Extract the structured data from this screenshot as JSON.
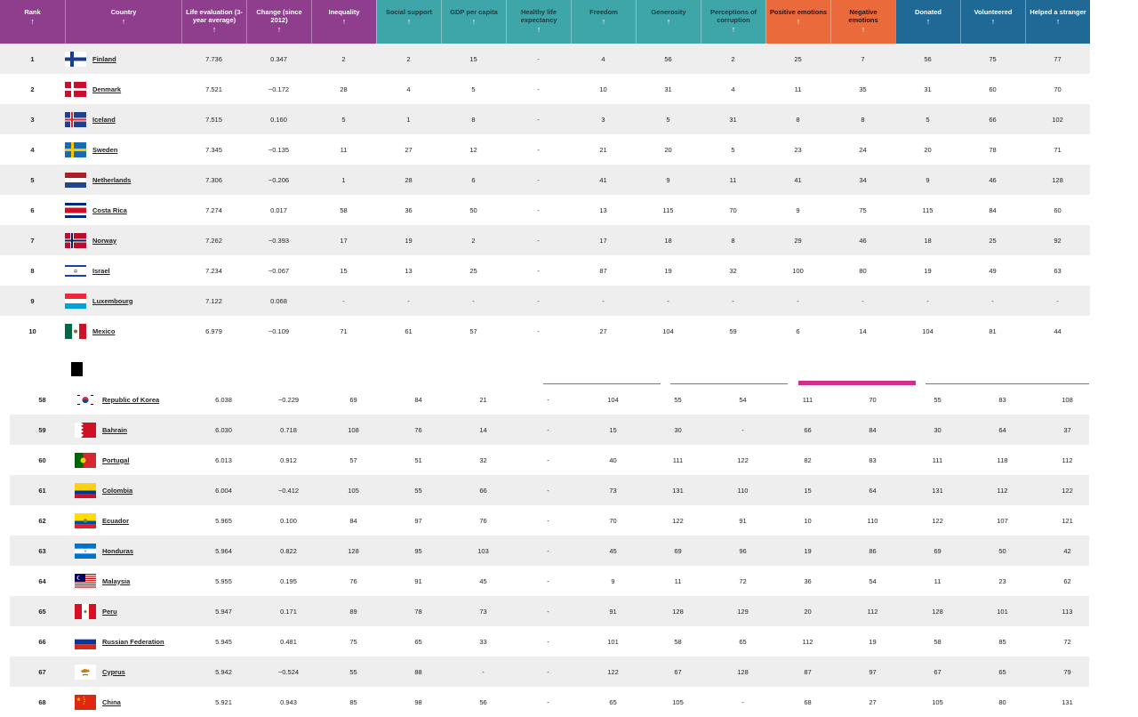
{
  "header": {
    "columns": [
      {
        "label": "Rank",
        "group": "g1"
      },
      {
        "label": "Country",
        "group": "g1"
      },
      {
        "label": "Life evaluation (3-year average)",
        "group": "g1"
      },
      {
        "label": "Change (since 2012)",
        "group": "g1"
      },
      {
        "label": "Inequality",
        "group": "g1"
      },
      {
        "label": "Social support",
        "group": "g2"
      },
      {
        "label": "GDP per capita",
        "group": "g2"
      },
      {
        "label": "Healthy life expectancy",
        "group": "g2"
      },
      {
        "label": "Freedom",
        "group": "g2"
      },
      {
        "label": "Generosity",
        "group": "g2"
      },
      {
        "label": "Perceptions of corruption",
        "group": "g2"
      },
      {
        "label": "Positive emotions",
        "group": "g3"
      },
      {
        "label": "Negative emotions",
        "group": "g3"
      },
      {
        "label": "Donated",
        "group": "g4"
      },
      {
        "label": "Volunteered",
        "group": "g4"
      },
      {
        "label": "Helped a stranger",
        "group": "g4"
      }
    ],
    "sort_arrow": "↑"
  },
  "top_rows": [
    {
      "rank": "1",
      "country": "Finland",
      "flag": "finland",
      "life": "7.736",
      "change": "0.347",
      "ineq": "2",
      "social": "2",
      "gdp": "15",
      "hle": "-",
      "freedom": "4",
      "gen": "56",
      "corr": "2",
      "pos": "25",
      "neg": "7",
      "don": "56",
      "vol": "75",
      "help": "77"
    },
    {
      "rank": "2",
      "country": "Denmark",
      "flag": "denmark",
      "life": "7.521",
      "change": "−0.172",
      "ineq": "28",
      "social": "4",
      "gdp": "5",
      "hle": "-",
      "freedom": "10",
      "gen": "31",
      "corr": "4",
      "pos": "11",
      "neg": "35",
      "don": "31",
      "vol": "60",
      "help": "70"
    },
    {
      "rank": "3",
      "country": "Iceland",
      "flag": "iceland",
      "life": "7.515",
      "change": "0.160",
      "ineq": "5",
      "social": "1",
      "gdp": "8",
      "hle": "-",
      "freedom": "3",
      "gen": "5",
      "corr": "31",
      "pos": "8",
      "neg": "8",
      "don": "5",
      "vol": "66",
      "help": "102"
    },
    {
      "rank": "4",
      "country": "Sweden",
      "flag": "sweden",
      "life": "7.345",
      "change": "−0.135",
      "ineq": "11",
      "social": "27",
      "gdp": "12",
      "hle": "-",
      "freedom": "21",
      "gen": "20",
      "corr": "5",
      "pos": "23",
      "neg": "24",
      "don": "20",
      "vol": "78",
      "help": "71"
    },
    {
      "rank": "5",
      "country": "Netherlands",
      "flag": "netherlands",
      "life": "7.306",
      "change": "−0.206",
      "ineq": "1",
      "social": "28",
      "gdp": "6",
      "hle": "-",
      "freedom": "41",
      "gen": "9",
      "corr": "11",
      "pos": "41",
      "neg": "34",
      "don": "9",
      "vol": "46",
      "help": "128"
    },
    {
      "rank": "6",
      "country": "Costa Rica",
      "flag": "costarica",
      "life": "7.274",
      "change": "0.017",
      "ineq": "58",
      "social": "36",
      "gdp": "50",
      "hle": "-",
      "freedom": "13",
      "gen": "115",
      "corr": "70",
      "pos": "9",
      "neg": "75",
      "don": "115",
      "vol": "84",
      "help": "60"
    },
    {
      "rank": "7",
      "country": "Norway",
      "flag": "norway",
      "life": "7.262",
      "change": "−0.393",
      "ineq": "17",
      "social": "19",
      "gdp": "2",
      "hle": "-",
      "freedom": "17",
      "gen": "18",
      "corr": "8",
      "pos": "29",
      "neg": "46",
      "don": "18",
      "vol": "25",
      "help": "92"
    },
    {
      "rank": "8",
      "country": "Israel",
      "flag": "israel",
      "life": "7.234",
      "change": "−0.067",
      "ineq": "15",
      "social": "13",
      "gdp": "25",
      "hle": "-",
      "freedom": "87",
      "gen": "19",
      "corr": "32",
      "pos": "100",
      "neg": "80",
      "don": "19",
      "vol": "49",
      "help": "63"
    },
    {
      "rank": "9",
      "country": "Luxembourg",
      "flag": "luxembourg",
      "life": "7.122",
      "change": "0.068",
      "ineq": "-",
      "social": "-",
      "gdp": "-",
      "hle": "-",
      "freedom": "-",
      "gen": "-",
      "corr": "-",
      "pos": "-",
      "neg": "-",
      "don": "-",
      "vol": "-",
      "help": "-"
    },
    {
      "rank": "10",
      "country": "Mexico",
      "flag": "mexico",
      "life": "6.979",
      "change": "−0.109",
      "ineq": "71",
      "social": "61",
      "gdp": "57",
      "hle": "-",
      "freedom": "27",
      "gen": "104",
      "corr": "59",
      "pos": "6",
      "neg": "14",
      "don": "104",
      "vol": "81",
      "help": "44"
    }
  ],
  "bottom_rows": [
    {
      "rank": "58",
      "country": "Republic of Korea",
      "flag": "korea",
      "life": "6.038",
      "change": "−0.229",
      "ineq": "69",
      "social": "84",
      "gdp": "21",
      "hle": "-",
      "freedom": "104",
      "gen": "55",
      "corr": "54",
      "pos": "111",
      "neg": "70",
      "don": "55",
      "vol": "83",
      "help": "108"
    },
    {
      "rank": "59",
      "country": "Bahrain",
      "flag": "bahrain",
      "life": "6.030",
      "change": "0.718",
      "ineq": "108",
      "social": "76",
      "gdp": "14",
      "hle": "-",
      "freedom": "15",
      "gen": "30",
      "corr": "-",
      "pos": "66",
      "neg": "84",
      "don": "30",
      "vol": "64",
      "help": "37"
    },
    {
      "rank": "60",
      "country": "Portugal",
      "flag": "portugal",
      "life": "6.013",
      "change": "0.912",
      "ineq": "57",
      "social": "51",
      "gdp": "32",
      "hle": "-",
      "freedom": "40",
      "gen": "111",
      "corr": "122",
      "pos": "82",
      "neg": "83",
      "don": "111",
      "vol": "118",
      "help": "112"
    },
    {
      "rank": "61",
      "country": "Colombia",
      "flag": "colombia",
      "life": "6.004",
      "change": "−0.412",
      "ineq": "105",
      "social": "55",
      "gdp": "66",
      "hle": "-",
      "freedom": "73",
      "gen": "131",
      "corr": "110",
      "pos": "15",
      "neg": "64",
      "don": "131",
      "vol": "112",
      "help": "122"
    },
    {
      "rank": "62",
      "country": "Ecuador",
      "flag": "ecuador",
      "life": "5.965",
      "change": "0.100",
      "ineq": "84",
      "social": "97",
      "gdp": "76",
      "hle": "-",
      "freedom": "70",
      "gen": "122",
      "corr": "91",
      "pos": "10",
      "neg": "110",
      "don": "122",
      "vol": "107",
      "help": "121"
    },
    {
      "rank": "63",
      "country": "Honduras",
      "flag": "honduras",
      "life": "5.964",
      "change": "0.822",
      "ineq": "128",
      "social": "95",
      "gdp": "103",
      "hle": "-",
      "freedom": "45",
      "gen": "69",
      "corr": "96",
      "pos": "19",
      "neg": "86",
      "don": "69",
      "vol": "50",
      "help": "42"
    },
    {
      "rank": "64",
      "country": "Malaysia",
      "flag": "malaysia",
      "life": "5.955",
      "change": "0.195",
      "ineq": "76",
      "social": "91",
      "gdp": "45",
      "hle": "-",
      "freedom": "9",
      "gen": "11",
      "corr": "72",
      "pos": "36",
      "neg": "54",
      "don": "11",
      "vol": "23",
      "help": "62"
    },
    {
      "rank": "65",
      "country": "Peru",
      "flag": "peru",
      "life": "5.947",
      "change": "0.171",
      "ineq": "89",
      "social": "78",
      "gdp": "73",
      "hle": "-",
      "freedom": "91",
      "gen": "128",
      "corr": "129",
      "pos": "20",
      "neg": "112",
      "don": "128",
      "vol": "101",
      "help": "113"
    },
    {
      "rank": "66",
      "country": "Russian Federation",
      "flag": "russia",
      "life": "5.945",
      "change": "0.481",
      "ineq": "75",
      "social": "65",
      "gdp": "33",
      "hle": "-",
      "freedom": "101",
      "gen": "58",
      "corr": "65",
      "pos": "112",
      "neg": "19",
      "don": "58",
      "vol": "85",
      "help": "72"
    },
    {
      "rank": "67",
      "country": "Cyprus",
      "flag": "cyprus",
      "life": "5.942",
      "change": "−0.524",
      "ineq": "55",
      "social": "88",
      "gdp": "-",
      "hle": "-",
      "freedom": "122",
      "gen": "67",
      "corr": "128",
      "pos": "87",
      "neg": "97",
      "don": "67",
      "vol": "65",
      "help": "79"
    },
    {
      "rank": "68",
      "country": "China",
      "flag": "china",
      "life": "5.921",
      "change": "0.943",
      "ineq": "85",
      "social": "98",
      "gdp": "56",
      "hle": "-",
      "freedom": "65",
      "gen": "105",
      "corr": "-",
      "pos": "68",
      "neg": "27",
      "don": "105",
      "vol": "80",
      "help": "131"
    }
  ],
  "colors": {
    "life_group": "#8e3e8c",
    "factors_group": "#3ea5a8",
    "emotions_group": "#ea6a3c",
    "prosocial_group": "#1e6995",
    "highlight": "#d0308a"
  }
}
